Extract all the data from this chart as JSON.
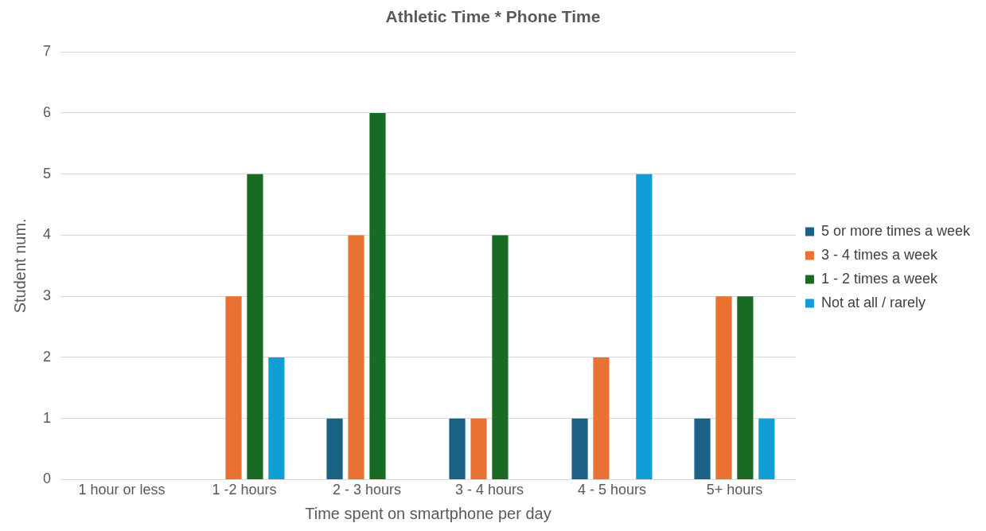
{
  "chart_data": {
    "type": "bar",
    "title": "Athletic Time * Phone Time",
    "xlabel": "Time spent on smartphone per day",
    "ylabel": "Student num.",
    "categories": [
      "1 hour or less",
      "1 -2 hours",
      "2 - 3 hours",
      "3 - 4 hours",
      "4 - 5 hours",
      "5+ hours"
    ],
    "series": [
      {
        "name": "5 or more times a week",
        "color": "#1a6185",
        "values": [
          0,
          0,
          1,
          1,
          1,
          1
        ]
      },
      {
        "name": "3 - 4 times a week",
        "color": "#e97132",
        "values": [
          0,
          3,
          4,
          1,
          2,
          3
        ]
      },
      {
        "name": "1 - 2 times a week",
        "color": "#196b24",
        "values": [
          0,
          5,
          6,
          4,
          0,
          3
        ]
      },
      {
        "name": "Not at all / rarely",
        "color": "#0f9ed5",
        "values": [
          0,
          2,
          0,
          0,
          5,
          1
        ]
      }
    ],
    "ylim": [
      0,
      7
    ],
    "yticks": [
      0,
      1,
      2,
      3,
      4,
      5,
      6,
      7
    ],
    "grid": "y",
    "legend": "right"
  }
}
